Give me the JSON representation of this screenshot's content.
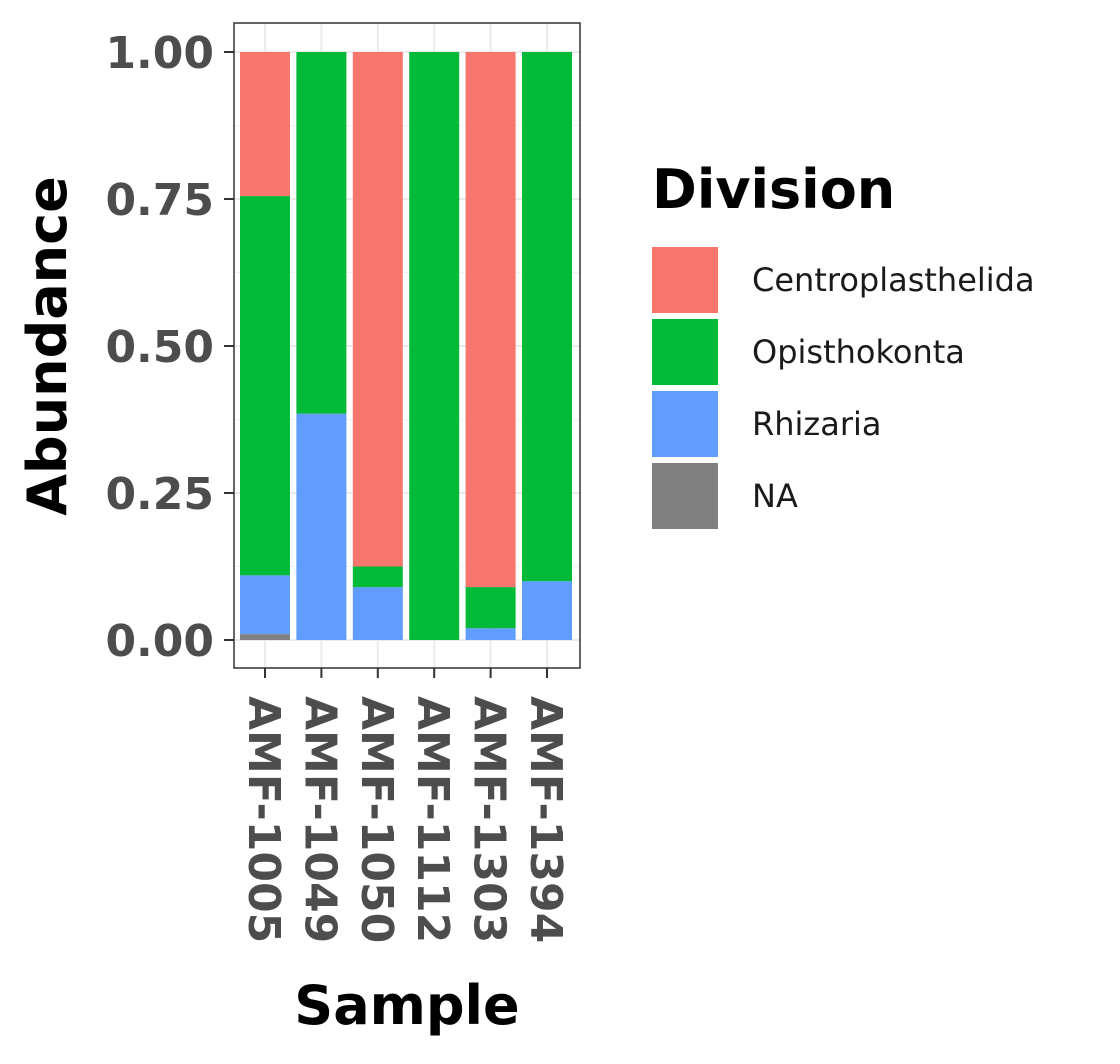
{
  "chart_data": {
    "type": "bar",
    "stacked": true,
    "categories": [
      "AMF-1005",
      "AMF-1049",
      "AMF-1050",
      "AMF-1112",
      "AMF-1303",
      "AMF-1394"
    ],
    "series": [
      {
        "name": "NA",
        "values": [
          0.01,
          0.0,
          0.0,
          0.0,
          0.0,
          0.0
        ]
      },
      {
        "name": "Rhizaria",
        "values": [
          0.1,
          0.385,
          0.09,
          0.0,
          0.02,
          0.1
        ]
      },
      {
        "name": "Opisthokonta",
        "values": [
          0.645,
          0.615,
          0.035,
          1.0,
          0.07,
          0.9
        ]
      },
      {
        "name": "Centroplasthelida",
        "values": [
          0.245,
          0.0,
          0.875,
          0.0,
          0.91,
          0.0
        ]
      }
    ],
    "xlabel": "Sample",
    "ylabel": "Abundance",
    "ylim": [
      0,
      1
    ],
    "yticks": [
      "0.00",
      "0.25",
      "0.50",
      "0.75",
      "1.00"
    ],
    "grid": true,
    "legend": {
      "title": "Division",
      "position": "right",
      "entries": [
        "Centroplasthelida",
        "Opisthokonta",
        "Rhizaria",
        "NA"
      ]
    },
    "colors": {
      "Centroplasthelida": "#F8766D",
      "Opisthokonta": "#00BA38",
      "Rhizaria": "#619CFF",
      "NA": "#808080"
    }
  }
}
